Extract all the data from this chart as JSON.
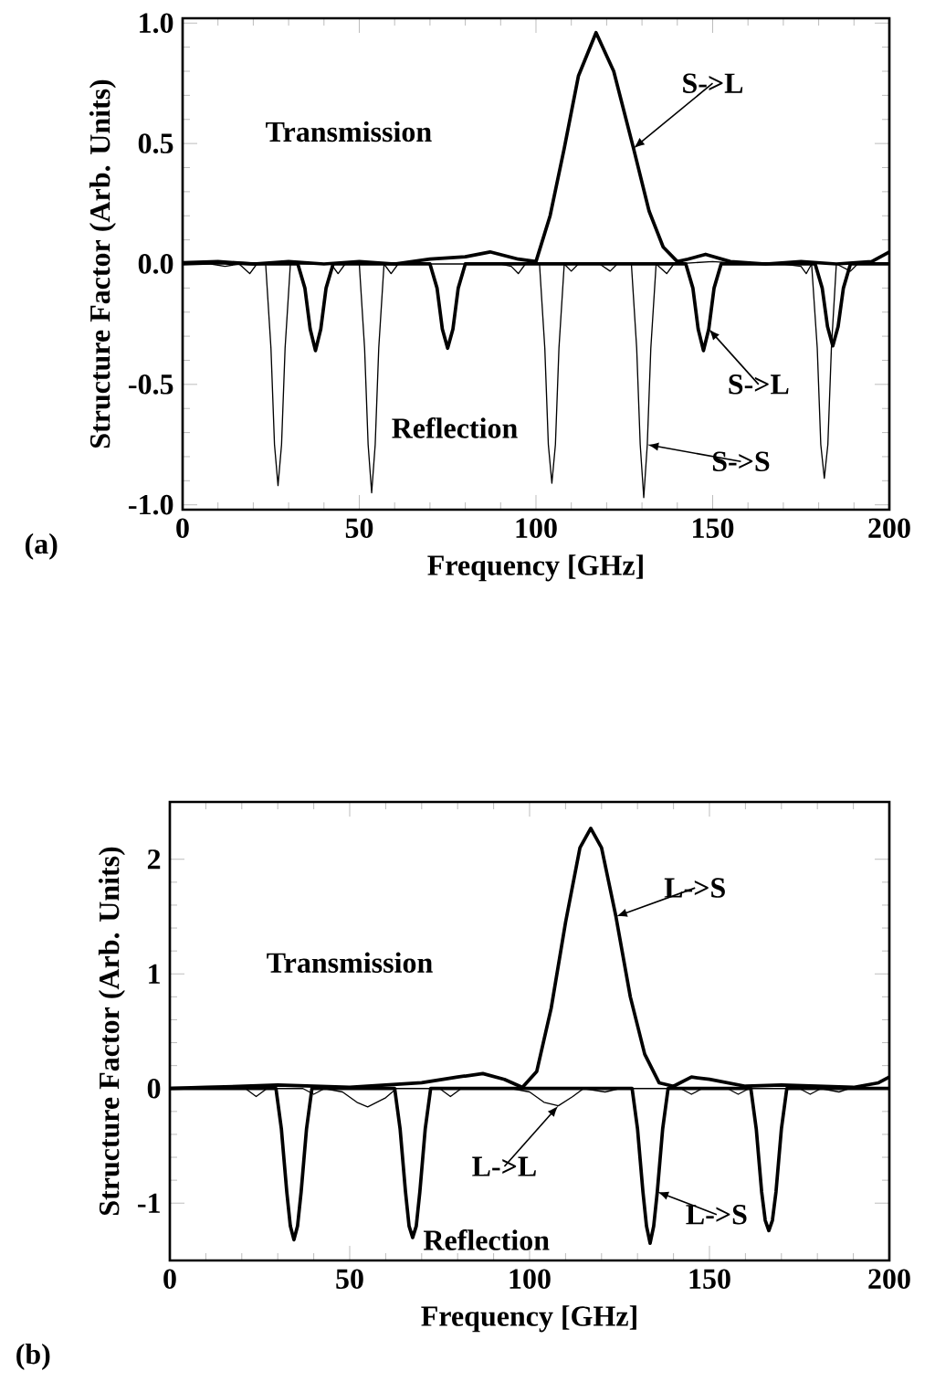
{
  "chart_data": [
    {
      "type": "line",
      "xlabel": "Frequency [GHz]",
      "ylabel": "Structure Factor (Arb. Units)",
      "xlim": [
        0,
        200
      ],
      "ylim": [
        -1.02,
        1.02
      ],
      "xticks": [
        0,
        50,
        100,
        150,
        200
      ],
      "yticks": [
        {
          "value": -1,
          "label": "-1.0"
        },
        {
          "value": -0.5,
          "label": "-0.5"
        },
        {
          "value": 0,
          "label": "0.0"
        },
        {
          "value": 0.5,
          "label": "0.5"
        },
        {
          "value": 1,
          "label": "1.0"
        }
      ],
      "series": [
        {
          "color": "#000000",
          "x": [
            0,
            10,
            20,
            30,
            40,
            50,
            60,
            70,
            80,
            87,
            95,
            100,
            104,
            108,
            112,
            117,
            122,
            127.6,
            132,
            136,
            140,
            143,
            148,
            155,
            165,
            175,
            185,
            195,
            200
          ],
          "values": [
            0.005,
            0.01,
            0.0,
            0.01,
            0.0,
            0.01,
            0.0,
            0.02,
            0.03,
            0.05,
            0.02,
            0.01,
            0.2,
            0.48,
            0.78,
            0.96,
            0.8,
            0.48,
            0.22,
            0.07,
            0.01,
            0.02,
            0.04,
            0.01,
            0.0,
            0.01,
            0.0,
            0.01,
            0.05
          ]
        },
        {
          "color": "#000000",
          "x": [
            0,
            10,
            20,
            30,
            32.6,
            34.6,
            36.1,
            37.6,
            39.1,
            40.6,
            42.6,
            55,
            65,
            70,
            72,
            73.5,
            75,
            76.5,
            78,
            80,
            90,
            100,
            110,
            120,
            130,
            140,
            142.4,
            144.4,
            145.9,
            147.4,
            148.9,
            150.4,
            152.4,
            165,
            175,
            179,
            181,
            182.5,
            184,
            185.5,
            187,
            189,
            200
          ],
          "values": [
            0,
            0.005,
            0,
            0,
            0,
            -0.1,
            -0.27,
            -0.36,
            -0.27,
            -0.1,
            0,
            0,
            0,
            0,
            -0.1,
            -0.27,
            -0.35,
            -0.27,
            -0.1,
            0,
            0,
            0,
            0,
            0,
            0,
            0,
            0,
            -0.1,
            -0.27,
            -0.36,
            -0.27,
            -0.1,
            0,
            0,
            0,
            0,
            -0.1,
            -0.26,
            -0.34,
            -0.26,
            -0.1,
            0,
            0
          ]
        },
        {
          "color": "#000000",
          "x": [
            0,
            8,
            12,
            16,
            19,
            21,
            23.5,
            25,
            26,
            27,
            28,
            29,
            30.5,
            34,
            42,
            44,
            46,
            50,
            51.5,
            52.5,
            53.5,
            54.5,
            55.5,
            57,
            59,
            61,
            70,
            80,
            90,
            93,
            95,
            97,
            101,
            102.5,
            103.5,
            104.5,
            105.5,
            106.5,
            108,
            110,
            112,
            118,
            121,
            123,
            127,
            128.5,
            129.5,
            130.5,
            131.5,
            132.5,
            134,
            137,
            139,
            150,
            160,
            170,
            175,
            176.5,
            178,
            179.6,
            180.6,
            181.6,
            182.6,
            183.6,
            185,
            189,
            191,
            200
          ],
          "values": [
            0,
            0,
            -0.01,
            0,
            -0.04,
            0,
            0,
            -0.35,
            -0.75,
            -0.92,
            -0.75,
            -0.35,
            0,
            0,
            0,
            -0.04,
            0,
            0,
            -0.35,
            -0.75,
            -0.95,
            -0.75,
            -0.35,
            0,
            -0.04,
            0,
            0,
            0,
            0,
            -0.01,
            -0.04,
            0,
            0,
            -0.35,
            -0.75,
            -0.91,
            -0.75,
            -0.35,
            0,
            -0.03,
            0,
            0,
            -0.03,
            0,
            0,
            -0.35,
            -0.75,
            -0.97,
            -0.75,
            -0.35,
            0,
            -0.04,
            0,
            0.01,
            0,
            0,
            -0.01,
            -0.04,
            0,
            -0.35,
            -0.75,
            -0.89,
            -0.75,
            -0.35,
            0,
            -0.03,
            0,
            0
          ]
        }
      ],
      "annotations": [
        "Transmission",
        "Reflection",
        {
          "text": "S->L",
          "x": 127.6,
          "y": 0.48
        },
        {
          "text": "S->L",
          "x": 148.9,
          "y": -0.27
        },
        {
          "text": "S->S",
          "x": 131.5,
          "y": -0.75
        },
        "(a)"
      ]
    },
    {
      "type": "line",
      "xlabel": "Frequency [GHz]",
      "ylabel": "Structure Factor (Arb. Units)",
      "xlim": [
        0,
        200
      ],
      "ylim": [
        -1.5,
        2.5
      ],
      "xticks": [
        0,
        50,
        100,
        150,
        200
      ],
      "yticks": [
        -1,
        0,
        1,
        2
      ],
      "series": [
        {
          "color": "#000000",
          "x": [
            0,
            10,
            20,
            30,
            40,
            50,
            60,
            70,
            80,
            87,
            93,
            98,
            102,
            106,
            110,
            114,
            117,
            120,
            124,
            128,
            132,
            136,
            140,
            145,
            150,
            160,
            170,
            180,
            190,
            197,
            200
          ],
          "values": [
            0,
            0.01,
            0.02,
            0.03,
            0.02,
            0.01,
            0.03,
            0.05,
            0.1,
            0.13,
            0.08,
            0.01,
            0.15,
            0.7,
            1.45,
            2.1,
            2.27,
            2.1,
            1.5,
            0.8,
            0.3,
            0.05,
            0.02,
            0.1,
            0.08,
            0.02,
            0.03,
            0.02,
            0.01,
            0.05,
            0.1
          ]
        },
        {
          "color": "#000000",
          "x": [
            0,
            10,
            20,
            29.5,
            31,
            32.5,
            33.5,
            34.5,
            35.5,
            36.5,
            38,
            39.5,
            50,
            62.5,
            64,
            65.5,
            66.5,
            67.5,
            68.5,
            69.5,
            71,
            72.5,
            90,
            110,
            128.5,
            130,
            131.5,
            132.5,
            133.5,
            134.5,
            135.5,
            137,
            138.5,
            150,
            161.5,
            163,
            164.5,
            165.5,
            166.5,
            167.5,
            168.5,
            170,
            171.5,
            185,
            200
          ],
          "values": [
            0,
            0,
            0,
            0,
            -0.35,
            -0.9,
            -1.2,
            -1.32,
            -1.2,
            -0.9,
            -0.35,
            0,
            0,
            0,
            -0.35,
            -0.9,
            -1.2,
            -1.3,
            -1.2,
            -0.9,
            -0.35,
            0,
            0,
            0,
            0,
            -0.35,
            -0.9,
            -1.2,
            -1.35,
            -1.2,
            -0.9,
            -0.35,
            0,
            0,
            0,
            -0.35,
            -0.9,
            -1.15,
            -1.24,
            -1.15,
            -0.9,
            -0.35,
            0,
            0,
            0
          ]
        },
        {
          "color": "#000000",
          "x": [
            0,
            15,
            21,
            24,
            27,
            37,
            40,
            43,
            48,
            52,
            55,
            60,
            63,
            75,
            78,
            81,
            95,
            100,
            104,
            108,
            112,
            115,
            121,
            125,
            142,
            145,
            148,
            155,
            158,
            161,
            175,
            178,
            181,
            186,
            189,
            200
          ],
          "values": [
            0,
            0,
            0,
            -0.07,
            0,
            0,
            -0.05,
            0,
            -0.03,
            -0.12,
            -0.16,
            -0.08,
            0,
            0,
            -0.07,
            0,
            0,
            -0.03,
            -0.12,
            -0.15,
            -0.07,
            0,
            -0.03,
            0,
            0,
            -0.05,
            0,
            0,
            -0.05,
            0,
            0,
            -0.05,
            0,
            -0.03,
            0,
            0
          ]
        }
      ],
      "annotations": [
        "Transmission",
        "Reflection",
        {
          "text": "L->S",
          "x": 124,
          "y": 1.5
        },
        {
          "text": "L->L",
          "x": 108,
          "y": -0.15
        },
        {
          "text": "L->S",
          "x": 135.5,
          "y": -0.9
        },
        "(b)"
      ]
    }
  ]
}
